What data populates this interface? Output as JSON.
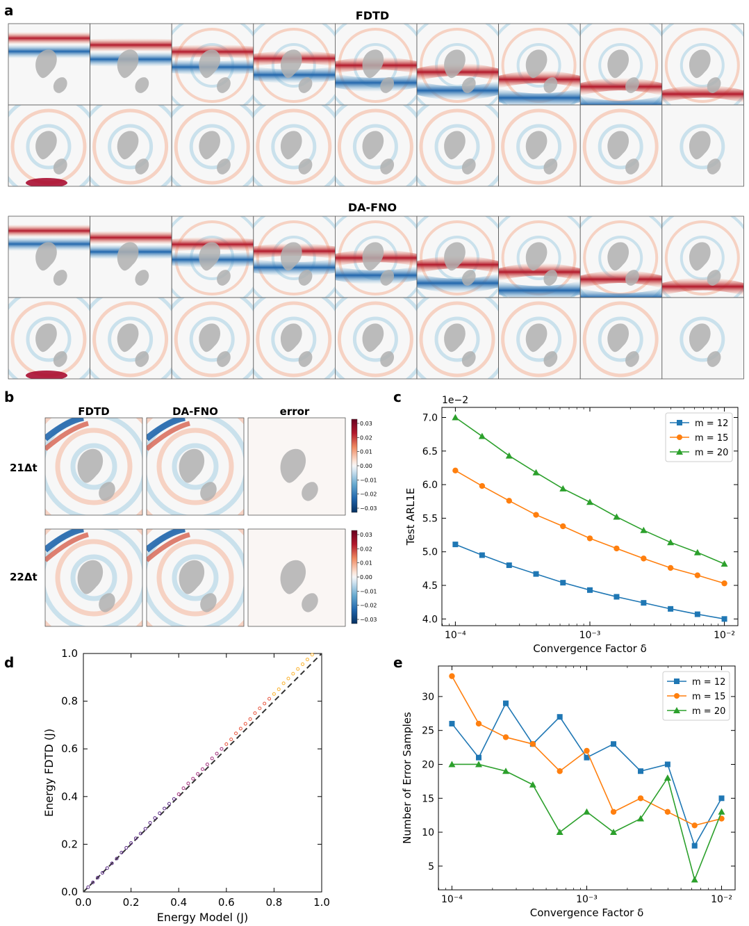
{
  "panels": {
    "a": {
      "label": "a",
      "rows": [
        {
          "title": "FDTD",
          "frames": 18
        },
        {
          "title": "DA-FNO",
          "frames": 18
        }
      ]
    },
    "b": {
      "label": "b",
      "column_titles": [
        "FDTD",
        "DA-FNO",
        "error"
      ],
      "row_labels": [
        "21Δt",
        "22Δt"
      ],
      "colorbar_ticks": [
        "0.03",
        "0.02",
        "0.01",
        "0.00",
        "−0.01",
        "−0.02",
        "−0.03"
      ]
    },
    "c": {
      "label": "c"
    },
    "d": {
      "label": "d"
    },
    "e": {
      "label": "e"
    }
  },
  "colors": {
    "m12": "#1f77b4",
    "m15": "#ff7f0e",
    "m20": "#2ca02c",
    "obstacle": "#b0b0b0",
    "wave_red": "#a50026",
    "wave_blue": "#08306b"
  },
  "chart_data": [
    {
      "id": "c",
      "type": "line",
      "xscale": "log",
      "xlabel": "Convergence Factor δ",
      "ylabel": "Test ARL1E",
      "offset_label": "1e−2",
      "xlim": [
        7.94e-05,
        0.0126
      ],
      "ylim": [
        3.9,
        7.15
      ],
      "yticks": [
        4.0,
        4.5,
        5.0,
        5.5,
        6.0,
        6.5,
        7.0
      ],
      "ytick_labels": [
        "4.0",
        "4.5",
        "5.0",
        "5.5",
        "6.0",
        "6.5",
        "7.0"
      ],
      "xticks": [
        0.0001,
        0.001,
        0.01
      ],
      "xtick_labels": [
        "10⁻⁴",
        "10⁻³",
        "10⁻²"
      ],
      "legend": "top-right",
      "x": [
        0.0001,
        0.000158,
        0.000251,
        0.000398,
        0.000631,
        0.001,
        0.00158,
        0.00251,
        0.00398,
        0.00631,
        0.01
      ],
      "series": [
        {
          "name": "m = 12",
          "marker": "square",
          "values": [
            5.11,
            4.95,
            4.8,
            4.67,
            4.54,
            4.43,
            4.33,
            4.24,
            4.15,
            4.07,
            4.0
          ]
        },
        {
          "name": "m = 15",
          "marker": "circle",
          "values": [
            6.21,
            5.98,
            5.76,
            5.55,
            5.38,
            5.2,
            5.05,
            4.9,
            4.76,
            4.65,
            4.53
          ]
        },
        {
          "name": "m = 20",
          "marker": "triangle",
          "values": [
            7.0,
            6.72,
            6.43,
            6.18,
            5.94,
            5.74,
            5.52,
            5.32,
            5.14,
            4.99,
            4.82
          ]
        }
      ]
    },
    {
      "id": "d",
      "type": "scatter",
      "xlabel": "Energy Model (J)",
      "ylabel": "Energy FDTD (J)",
      "xlim": [
        0,
        1
      ],
      "ylim": [
        0,
        1
      ],
      "ticks": [
        0.0,
        0.2,
        0.4,
        0.6,
        0.8,
        1.0
      ],
      "tick_labels": [
        "0.0",
        "0.2",
        "0.4",
        "0.6",
        "0.8",
        "1.0"
      ],
      "reference_line": "y = x (dashed)",
      "x": [
        0.02,
        0.04,
        0.06,
        0.08,
        0.1,
        0.12,
        0.14,
        0.16,
        0.18,
        0.2,
        0.22,
        0.24,
        0.26,
        0.28,
        0.3,
        0.32,
        0.34,
        0.36,
        0.38,
        0.4,
        0.42,
        0.44,
        0.46,
        0.48,
        0.5,
        0.52,
        0.54,
        0.56,
        0.58,
        0.6,
        0.62,
        0.64,
        0.66,
        0.68,
        0.7,
        0.72,
        0.74,
        0.76,
        0.78,
        0.8,
        0.82,
        0.84,
        0.86,
        0.88,
        0.9,
        0.92,
        0.94,
        0.96
      ],
      "y": [
        0.02,
        0.04,
        0.06,
        0.08,
        0.1,
        0.12,
        0.14,
        0.165,
        0.185,
        0.205,
        0.225,
        0.245,
        0.265,
        0.29,
        0.31,
        0.33,
        0.35,
        0.37,
        0.39,
        0.41,
        0.435,
        0.455,
        0.475,
        0.495,
        0.515,
        0.535,
        0.56,
        0.58,
        0.6,
        0.62,
        0.64,
        0.665,
        0.685,
        0.705,
        0.725,
        0.75,
        0.77,
        0.79,
        0.81,
        0.83,
        0.85,
        0.875,
        0.895,
        0.915,
        0.935,
        0.955,
        0.975,
        0.995
      ]
    },
    {
      "id": "e",
      "type": "line",
      "xscale": "log",
      "xlabel": "Convergence Factor δ",
      "ylabel": "Number of Error Samples",
      "xlim": [
        7.94e-05,
        0.0126
      ],
      "ylim": [
        1.5,
        34.5
      ],
      "yticks": [
        5,
        10,
        15,
        20,
        25,
        30
      ],
      "ytick_labels": [
        "5",
        "10",
        "15",
        "20",
        "25",
        "30"
      ],
      "xticks": [
        0.0001,
        0.001,
        0.01
      ],
      "xtick_labels": [
        "10⁻⁴",
        "10⁻³",
        "10⁻²"
      ],
      "legend": "top-right",
      "x": [
        0.0001,
        0.000158,
        0.000251,
        0.000398,
        0.000631,
        0.001,
        0.00158,
        0.00251,
        0.00398,
        0.00631,
        0.01
      ],
      "series": [
        {
          "name": "m = 12",
          "marker": "square",
          "values": [
            26,
            21,
            29,
            23,
            27,
            21,
            23,
            19,
            20,
            8,
            15
          ]
        },
        {
          "name": "m = 15",
          "marker": "circle",
          "values": [
            33,
            26,
            24,
            23,
            19,
            22,
            13,
            15,
            13,
            11,
            12
          ]
        },
        {
          "name": "m = 20",
          "marker": "triangle",
          "values": [
            20,
            20,
            19,
            17,
            10,
            13,
            10,
            12,
            18,
            3,
            13
          ]
        }
      ]
    }
  ]
}
